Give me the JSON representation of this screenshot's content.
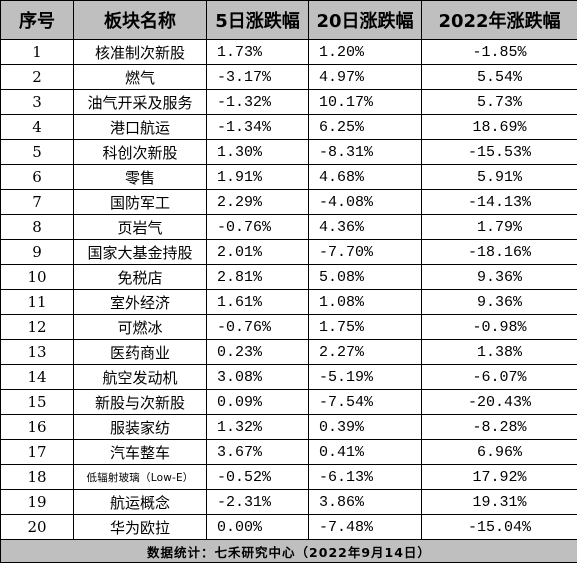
{
  "header": {
    "index": "序号",
    "sector": "板块名称",
    "d5": "5日涨跌幅",
    "d20": "20日涨跌幅",
    "ytd": "2022年涨跌幅"
  },
  "rows": [
    {
      "index": "1",
      "sector": "核准制次新股",
      "d5": "1.73%",
      "d20": "1.20%",
      "ytd": "-1.85%"
    },
    {
      "index": "2",
      "sector": "燃气",
      "d5": "-3.17%",
      "d20": "4.97%",
      "ytd": "5.54%"
    },
    {
      "index": "3",
      "sector": "油气开采及服务",
      "d5": "-1.32%",
      "d20": "10.17%",
      "ytd": "5.73%"
    },
    {
      "index": "4",
      "sector": "港口航运",
      "d5": "-1.34%",
      "d20": "6.25%",
      "ytd": "18.69%"
    },
    {
      "index": "5",
      "sector": "科创次新股",
      "d5": "1.30%",
      "d20": "-8.31%",
      "ytd": "-15.53%"
    },
    {
      "index": "6",
      "sector": "零售",
      "d5": "1.91%",
      "d20": "4.68%",
      "ytd": "5.91%"
    },
    {
      "index": "7",
      "sector": "国防军工",
      "d5": "2.29%",
      "d20": "-4.08%",
      "ytd": "-14.13%"
    },
    {
      "index": "8",
      "sector": "页岩气",
      "d5": "-0.76%",
      "d20": "4.36%",
      "ytd": "1.79%"
    },
    {
      "index": "9",
      "sector": "国家大基金持股",
      "d5": "2.01%",
      "d20": "-7.70%",
      "ytd": "-18.16%"
    },
    {
      "index": "10",
      "sector": "免税店",
      "d5": "2.81%",
      "d20": "5.08%",
      "ytd": "9.36%"
    },
    {
      "index": "11",
      "sector": "室外经济",
      "d5": "1.61%",
      "d20": "1.08%",
      "ytd": "9.36%"
    },
    {
      "index": "12",
      "sector": "可燃冰",
      "d5": "-0.76%",
      "d20": "1.75%",
      "ytd": "-0.98%"
    },
    {
      "index": "13",
      "sector": "医药商业",
      "d5": "0.23%",
      "d20": "2.27%",
      "ytd": "1.38%"
    },
    {
      "index": "14",
      "sector": "航空发动机",
      "d5": "3.08%",
      "d20": "-5.19%",
      "ytd": "-6.07%"
    },
    {
      "index": "15",
      "sector": "新股与次新股",
      "d5": "0.09%",
      "d20": "-7.54%",
      "ytd": "-20.43%"
    },
    {
      "index": "16",
      "sector": "服装家纺",
      "d5": "1.32%",
      "d20": "0.39%",
      "ytd": "-8.28%"
    },
    {
      "index": "17",
      "sector": "汽车整车",
      "d5": "3.67%",
      "d20": "0.41%",
      "ytd": "6.96%"
    },
    {
      "index": "18",
      "sector": "低辐射玻璃（Low-E）",
      "d5": "-0.52%",
      "d20": "-6.13%",
      "ytd": "17.92%"
    },
    {
      "index": "19",
      "sector": "航运概念",
      "d5": "-2.31%",
      "d20": "3.86%",
      "ytd": "19.31%"
    },
    {
      "index": "20",
      "sector": "华为欧拉",
      "d5": "0.00%",
      "d20": "-7.48%",
      "ytd": "-15.04%"
    }
  ],
  "footer": {
    "source": "数据统计：七禾研究中心（2022年9月14日）"
  }
}
